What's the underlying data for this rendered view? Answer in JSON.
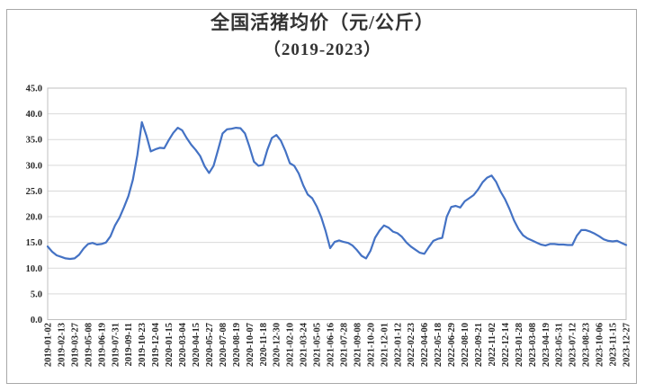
{
  "chart": {
    "frame_border_color": "#a8a8a8",
    "plot_border_color": "#bfbfbf",
    "gridline_color": "#d9d9d9",
    "line_color": "#4472C4",
    "text_color": "#262626"
  },
  "chart_data": {
    "type": "line",
    "title": "全国活猪均价（元/公斤）",
    "subtitle": "（2019-2023）",
    "xlabel": "",
    "ylabel": "",
    "ylim": [
      0,
      45
    ],
    "ytick_step": 5,
    "ytick_labels": [
      "0.0",
      "5.0",
      "10.0",
      "15.0",
      "20.0",
      "25.0",
      "30.0",
      "35.0",
      "40.0",
      "45.0"
    ],
    "grid": "horizontal",
    "legend": "none",
    "x_tick_labels": [
      "2019-01-02",
      "2019-02-13",
      "2019-03-27",
      "2019-05-08",
      "2019-06-19",
      "2019-07-31",
      "2019-09-11",
      "2019-10-23",
      "2019-12-04",
      "2020-01-15",
      "2020-03-04",
      "2020-04-15",
      "2020-05-27",
      "2020-07-08",
      "2020-08-19",
      "2020-10-07",
      "2020-11-18",
      "2020-12-30",
      "2021-02-10",
      "2021-03-24",
      "2021-05-05",
      "2021-06-16",
      "2021-07-28",
      "2021-09-08",
      "2021-10-20",
      "2021-12-01",
      "2022-01-12",
      "2022-02-23",
      "2022-04-06",
      "2022-05-18",
      "2022-06-29",
      "2022-08-10",
      "2022-09-21",
      "2022-11-02",
      "2022-12-14",
      "2023-01-28",
      "2023-03-08",
      "2023-04-19",
      "2023-05-31",
      "2023-07-12",
      "2023-08-23",
      "2023-10-06",
      "2023-11-15",
      "2023-12-27"
    ],
    "points_per_label_interval": 3,
    "series": [
      {
        "name": "全国活猪均价",
        "values": [
          14.2,
          13.2,
          12.5,
          12.2,
          11.9,
          11.8,
          11.9,
          12.6,
          13.8,
          14.7,
          14.9,
          14.6,
          14.7,
          15.0,
          16.2,
          18.3,
          19.8,
          21.8,
          24.0,
          27.2,
          32.0,
          38.4,
          35.8,
          32.7,
          33.1,
          33.4,
          33.3,
          34.9,
          36.3,
          37.3,
          36.8,
          35.3,
          34.0,
          33.0,
          31.8,
          29.8,
          28.5,
          29.9,
          33.0,
          36.2,
          37.0,
          37.1,
          37.3,
          37.2,
          36.2,
          33.6,
          30.7,
          29.9,
          30.1,
          33.0,
          35.3,
          35.9,
          34.8,
          32.8,
          30.4,
          29.9,
          28.4,
          26.1,
          24.3,
          23.6,
          22.0,
          19.9,
          17.2,
          13.9,
          15.1,
          15.4,
          15.1,
          14.9,
          14.4,
          13.5,
          12.4,
          11.9,
          13.4,
          15.9,
          17.3,
          18.3,
          17.9,
          17.1,
          16.8,
          16.1,
          15.0,
          14.2,
          13.6,
          13.0,
          12.8,
          14.1,
          15.3,
          15.7,
          15.9,
          20.0,
          21.9,
          22.1,
          21.8,
          23.0,
          23.6,
          24.2,
          25.3,
          26.7,
          27.6,
          28.0,
          26.8,
          24.9,
          23.4,
          21.5,
          19.3,
          17.6,
          16.4,
          15.8,
          15.4,
          15.0,
          14.6,
          14.4,
          14.7,
          14.7,
          14.6,
          14.6,
          14.5,
          14.5,
          16.3,
          17.4,
          17.4,
          17.1,
          16.7,
          16.2,
          15.6,
          15.3,
          15.2,
          15.3,
          14.9,
          14.5
        ]
      }
    ]
  }
}
